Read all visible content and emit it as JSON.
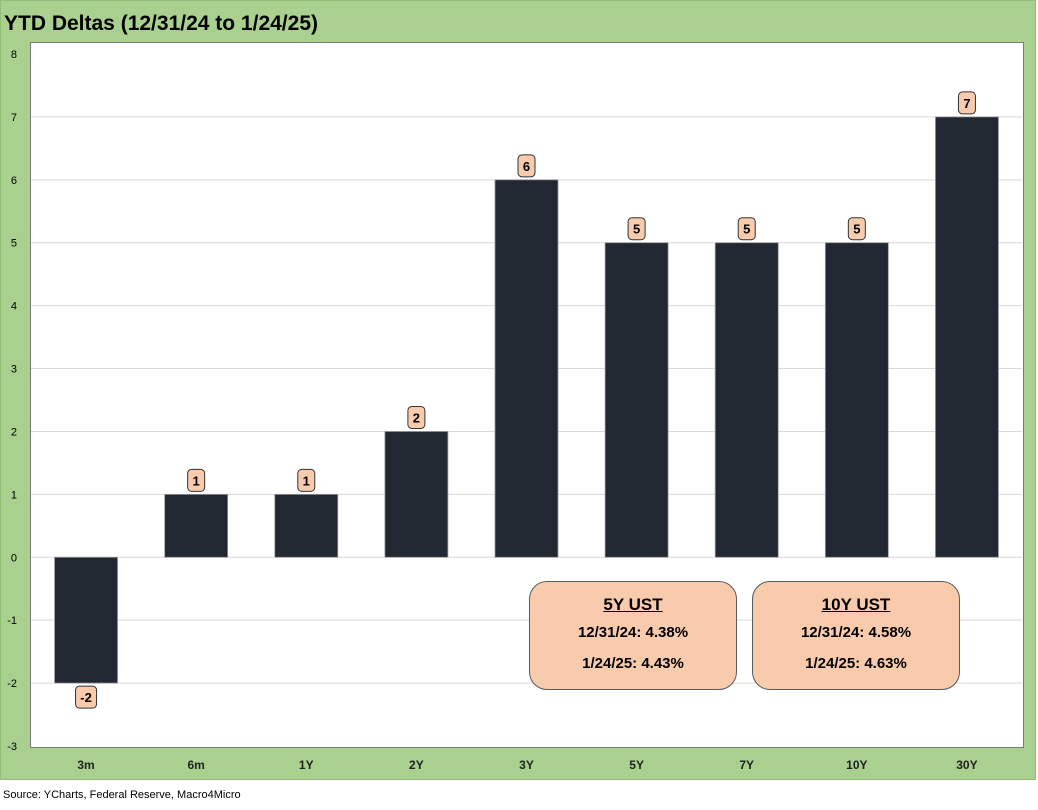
{
  "title": "YTD Deltas (12/31/24 to 1/24/25)",
  "source": "Source: YCharts, Federal Reserve, Macro4Micro",
  "colors": {
    "frame": "#a9d08e",
    "bar": "#222831",
    "label_fill": "#f8cbad",
    "grid": "#d9d9d9"
  },
  "chart_data": {
    "type": "bar",
    "title": "YTD Deltas (12/31/24 to 1/24/25)",
    "categories": [
      "3m",
      "6m",
      "1Y",
      "2Y",
      "3Y",
      "5Y",
      "7Y",
      "10Y",
      "30Y"
    ],
    "values": [
      -2,
      1,
      1,
      2,
      6,
      5,
      5,
      5,
      7
    ],
    "ylim": [
      -3,
      8
    ],
    "yticks": [
      "8",
      "7",
      "6",
      "5",
      "4",
      "3",
      "2",
      "1",
      "0",
      "-1",
      "-2",
      "-3"
    ],
    "xlabel": "",
    "ylabel": "",
    "grid": true,
    "legend": "none"
  },
  "annotations": [
    {
      "title": "5Y UST",
      "line1": "12/31/24: 4.38%",
      "line2": "1/24/25: 4.43%"
    },
    {
      "title": "10Y UST",
      "line1": "12/31/24: 4.58%",
      "line2": "1/24/25: 4.63%"
    }
  ]
}
